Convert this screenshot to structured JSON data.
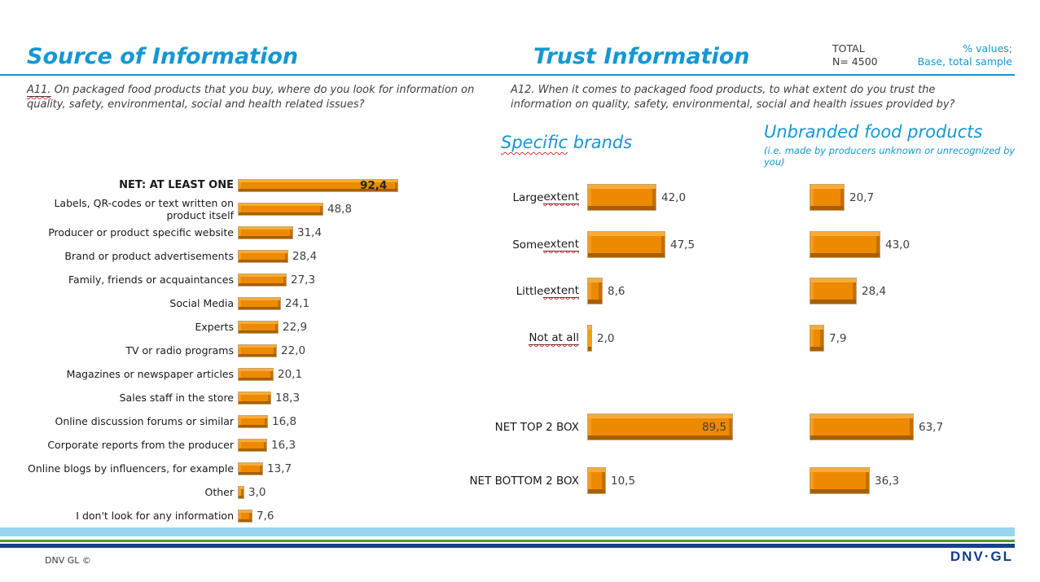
{
  "header": {
    "left_title": "Source of Information",
    "right_title": "Trust Information",
    "total_label": "TOTAL",
    "total_n": "N= 4500",
    "note_line1": "% values;",
    "note_line2": "Base, total sample"
  },
  "questions": {
    "left_prefix": "A11.",
    "left_text": " On packaged food products that you buy, where do you look for information on quality, safety, environmental, social and health related issues?",
    "right_text": "A12. When it comes to packaged food products, to what extent do you trust the information on quality, safety, environmental, social and health issues provided by?"
  },
  "right_section": {
    "col1_title_prefix": "Specific",
    "col1_title_rest": " brands",
    "col2_title": "Unbranded food products",
    "col2_subtitle": "(i.e. made by producers unknown or unrecognized by you)"
  },
  "footer": {
    "copyright": "DNV GL ©",
    "logo_text": "DNV·GL"
  },
  "colors": {
    "accent_blue": "#1697d3",
    "bar_orange": "#ed8a00",
    "bar_bevel_light": "#f8ab39",
    "bar_bevel_dark": "#a85f00",
    "stripe_lightblue": "#9ad5ee",
    "stripe_green": "#4e9b30",
    "stripe_darkblue": "#16418c",
    "logo_navy": "#0f3d8c",
    "squiggle_red": "#e03131"
  },
  "chart_data": [
    {
      "type": "bar",
      "orientation": "horizontal",
      "title": "Source of Information",
      "question": "A11. On packaged food products that you buy, where do you look for information on quality, safety, environmental, social and health related issues?",
      "value_format": "percent, comma decimal, 1 dp",
      "xlim": [
        0,
        100
      ],
      "emphasis_category": "NET: AT LEAST ONE",
      "categories": [
        "NET: AT LEAST ONE",
        "Labels, QR-codes or text written on\nproduct itself",
        "Producer or product specific website",
        "Brand or product advertisements",
        "Family, friends or acquaintances",
        "Social Media",
        "Experts",
        "TV or radio programs",
        "Magazines or newspaper articles",
        "Sales staff in the store",
        "Online discussion forums or similar",
        "Corporate reports from the producer",
        "Online blogs by influencers, for example",
        "Other",
        "I don't look for any information"
      ],
      "values": [
        92.4,
        48.8,
        31.4,
        28.4,
        27.3,
        24.1,
        22.9,
        22.0,
        20.1,
        18.3,
        16.8,
        16.3,
        13.7,
        3.0,
        7.6
      ]
    },
    {
      "type": "bar",
      "orientation": "horizontal",
      "title": "Trust Information",
      "question": "A12. When it comes to packaged food products, to what extent do you trust the information on quality, safety, environmental, social and health issues provided by?",
      "value_format": "percent, comma decimal, 1 dp",
      "xlim": [
        0,
        100
      ],
      "categories": [
        "Large extent",
        "Some extent",
        "Little extent",
        "Not at all",
        "NET TOP 2 BOX",
        "NET BOTTOM 2 BOX"
      ],
      "underline_parts": [
        "extent",
        "extent",
        "extent",
        "Not at all",
        "",
        ""
      ],
      "series": [
        {
          "name": "Specific brands",
          "values": [
            42.0,
            47.5,
            8.6,
            2.0,
            89.5,
            10.5
          ]
        },
        {
          "name": "Unbranded food products (i.e. made by producers unknown or unrecognized by you)",
          "values": [
            20.7,
            43.0,
            28.4,
            7.9,
            63.7,
            36.3
          ]
        }
      ]
    }
  ]
}
